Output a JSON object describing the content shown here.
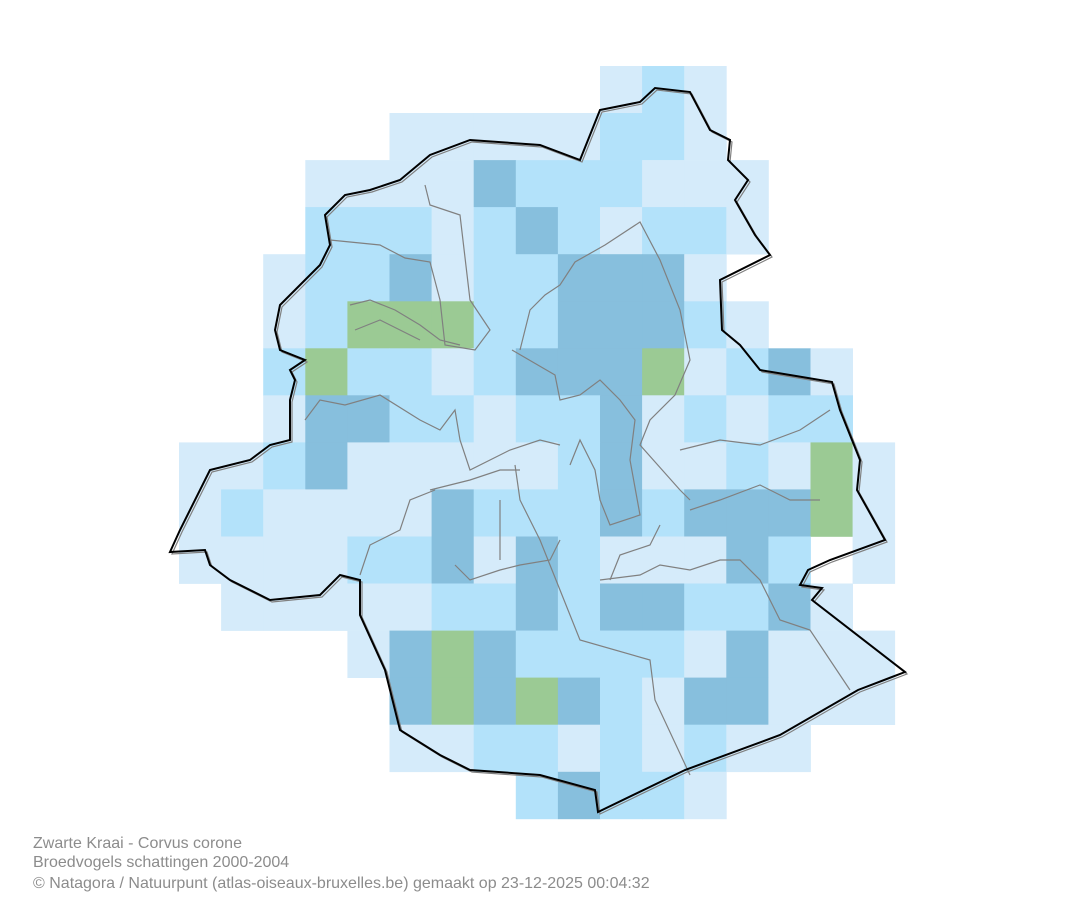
{
  "legend_colors": {
    "L": "#d5ebfa",
    "M": "#b3e2fa",
    "D": "#87bfdd",
    "G": "#9bca94"
  },
  "grid_rows": [
    "..........LML....",
    ".....LLLLLMML....",
    "...LLLLDMMMLLL...",
    "...MMMLMDMLMML...",
    "..LMMDLMMDDDL....",
    "..LMGGGMMDDDML...",
    "..MGMMLMDDDGLMDL.",
    "..LDDMMLMMDLMLMM.",
    "LLMDLLLLLMDLLMLGL",
    "LMLLLLDMMMDMDDDGL",
    "LLLLMMDLDMLLLDM.L",
    ".LLLLLMMDMDDMMDL.",
    "....LDGDMMMMLDLLL",
    ".....DGDGDMLDDLLL",
    ".....LLMMLMLMLL..",
    "........MDMML...."
  ],
  "boundary_color": "#000000",
  "commune_border_color": "#808080",
  "caption": {
    "line1": "Zwarte Kraai - Corvus corone",
    "line2": "Broedvogels schattingen 2000-2004",
    "line3": "© Natagora / Natuurpunt (atlas-oiseaux-bruxelles.be) gemaakt op 23-12-2025 00:04:32"
  }
}
